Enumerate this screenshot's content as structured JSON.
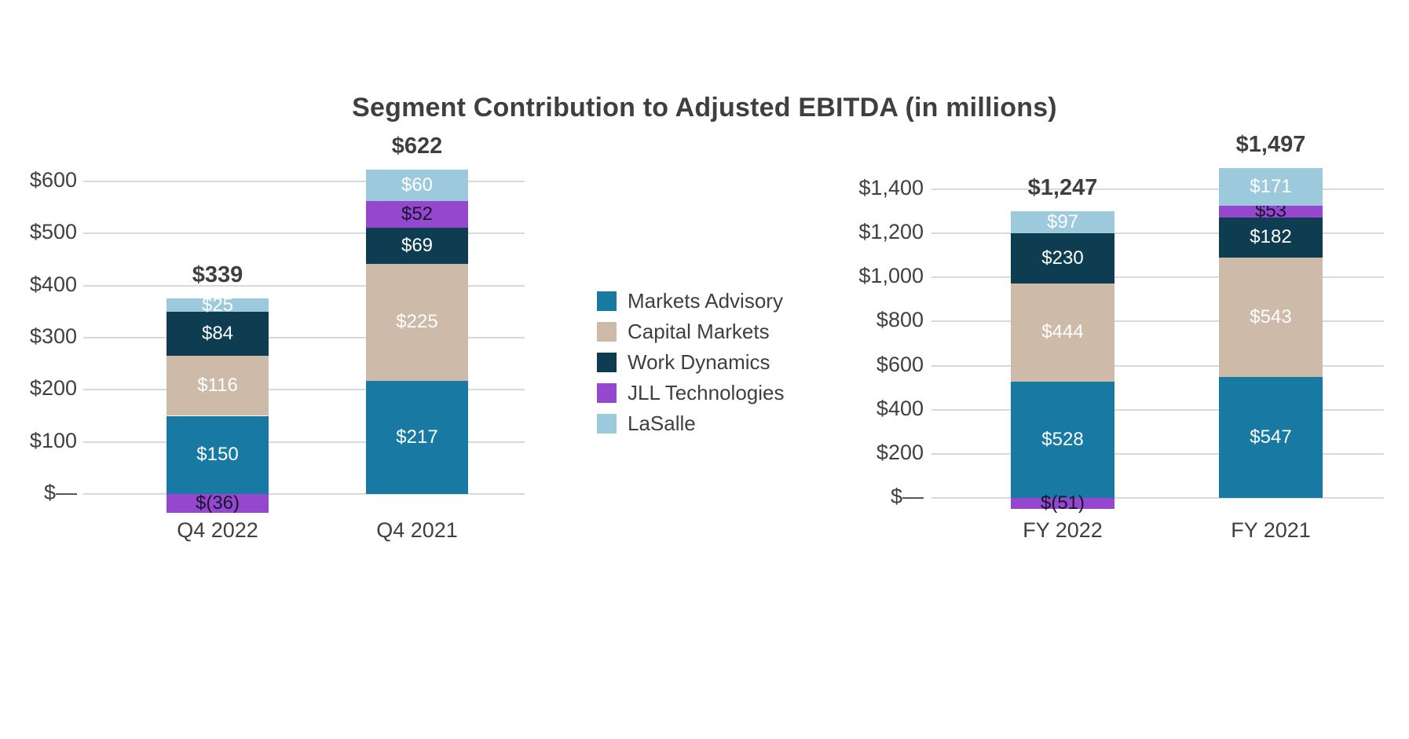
{
  "title": "Segment Contribution to Adjusted EBITDA (in millions)",
  "colors": {
    "background": "#ffffff",
    "title_text": "#3f3f3f",
    "axis_text": "#3f3f3f",
    "gridline": "#d9d9d9",
    "total_text": "#3f3f3f"
  },
  "legend": {
    "items": [
      {
        "label": "Markets Advisory",
        "color": "#1879a3",
        "label_color": "#ffffff"
      },
      {
        "label": "Capital Markets",
        "color": "#cebaa8",
        "label_color": "#ffffff"
      },
      {
        "label": "Work Dynamics",
        "color": "#0e3d51",
        "label_color": "#ffffff"
      },
      {
        "label": "JLL Technologies",
        "color": "#9547cd",
        "label_color": "#15152e"
      },
      {
        "label": "LaSalle",
        "color": "#9dc9dc",
        "label_color": "#ffffff"
      }
    ]
  },
  "chart_data": [
    {
      "type": "bar",
      "stacked": true,
      "categories": [
        "Q4 2022",
        "Q4 2021"
      ],
      "series": [
        {
          "name": "Markets Advisory",
          "values": [
            150,
            217
          ],
          "labels": [
            "$150",
            "$217"
          ]
        },
        {
          "name": "Capital Markets",
          "values": [
            116,
            225
          ],
          "labels": [
            "$116",
            "$225"
          ]
        },
        {
          "name": "Work Dynamics",
          "values": [
            84,
            69
          ],
          "labels": [
            "$84",
            "$69"
          ]
        },
        {
          "name": "JLL Technologies",
          "values": [
            -36,
            52
          ],
          "labels": [
            "$(36)",
            "$52"
          ]
        },
        {
          "name": "LaSalle",
          "values": [
            25,
            60
          ],
          "labels": [
            "$25",
            "$60"
          ]
        }
      ],
      "totals": [
        339,
        622
      ],
      "total_labels": [
        "$339",
        "$622"
      ],
      "y_ticks": [
        0,
        100,
        200,
        300,
        400,
        500,
        600
      ],
      "y_tick_labels": [
        "$—",
        "$100",
        "$200",
        "$300",
        "$400",
        "$500",
        "$600"
      ],
      "ylim": [
        0,
        600
      ],
      "grid": "horizontal",
      "legend_position": "center-between-charts"
    },
    {
      "type": "bar",
      "stacked": true,
      "categories": [
        "FY 2022",
        "FY 2021"
      ],
      "series": [
        {
          "name": "Markets Advisory",
          "values": [
            528,
            547
          ],
          "labels": [
            "$528",
            "$547"
          ]
        },
        {
          "name": "Capital Markets",
          "values": [
            444,
            543
          ],
          "labels": [
            "$444",
            "$543"
          ]
        },
        {
          "name": "Work Dynamics",
          "values": [
            230,
            182
          ],
          "labels": [
            "$230",
            "$182"
          ]
        },
        {
          "name": "JLL Technologies",
          "values": [
            -51,
            53
          ],
          "labels": [
            "$(51)",
            "$53"
          ]
        },
        {
          "name": "LaSalle",
          "values": [
            97,
            171
          ],
          "labels": [
            "$97",
            "$171"
          ]
        }
      ],
      "totals": [
        1247,
        1497
      ],
      "total_labels": [
        "$1,247",
        "$1,497"
      ],
      "y_ticks": [
        0,
        200,
        400,
        600,
        800,
        1000,
        1200,
        1400
      ],
      "y_tick_labels": [
        "$—",
        "$200",
        "$400",
        "$600",
        "$800",
        "$1,000",
        "$1,200",
        "$1,400"
      ],
      "ylim": [
        0,
        1400
      ],
      "grid": "horizontal",
      "legend_position": "center-between-charts"
    }
  ]
}
